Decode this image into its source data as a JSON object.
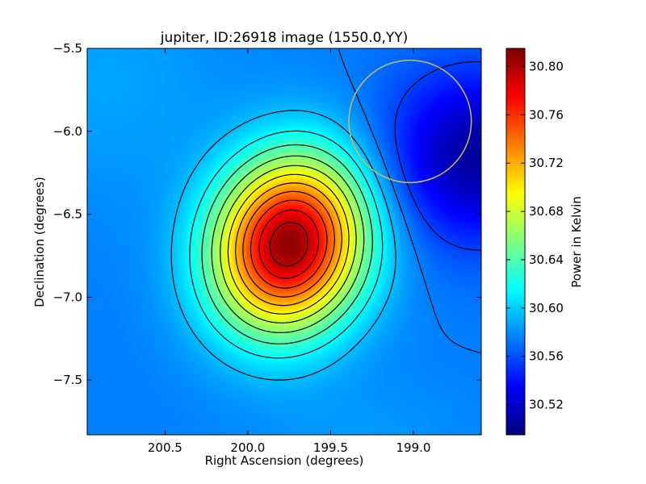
{
  "chart_data": {
    "type": "heatmap",
    "title": "jupiter, ID:26918 image (1550.0,YY)",
    "xlabel": "Right Ascension (degrees)",
    "ylabel": "Declination (degrees)",
    "colorbar_label": "Power in Kelvin",
    "xlim": [
      200.97,
      198.59
    ],
    "ylim": [
      -7.83,
      -5.5
    ],
    "x_ticks": [
      200.5,
      200.0,
      199.5,
      199.0
    ],
    "x_tick_labels": [
      "200.5",
      "200.0",
      "199.5",
      "199.0"
    ],
    "y_ticks": [
      -7.5,
      -7.0,
      -6.5,
      -6.0,
      -5.5
    ],
    "y_tick_labels": [
      "−7.5",
      "−7.0",
      "−6.5",
      "−6.0",
      "−5.5"
    ],
    "colorbar_range": [
      30.495,
      30.815
    ],
    "colorbar_ticks": [
      30.52,
      30.56,
      30.6,
      30.64,
      30.68,
      30.72,
      30.76,
      30.8
    ],
    "colorbar_tick_labels": [
      "30.52",
      "30.56",
      "30.60",
      "30.64",
      "30.68",
      "30.72",
      "30.76",
      "30.80"
    ],
    "colormap": "jet",
    "peak": {
      "ra": 199.75,
      "dec": -6.68,
      "value": 30.81
    },
    "background_value": 30.575,
    "beam_circle": {
      "ra": 199.02,
      "dec": -5.94,
      "radius_deg": 0.37,
      "color": "#c9bd55"
    },
    "contour_color": "#000000",
    "grid": false
  }
}
